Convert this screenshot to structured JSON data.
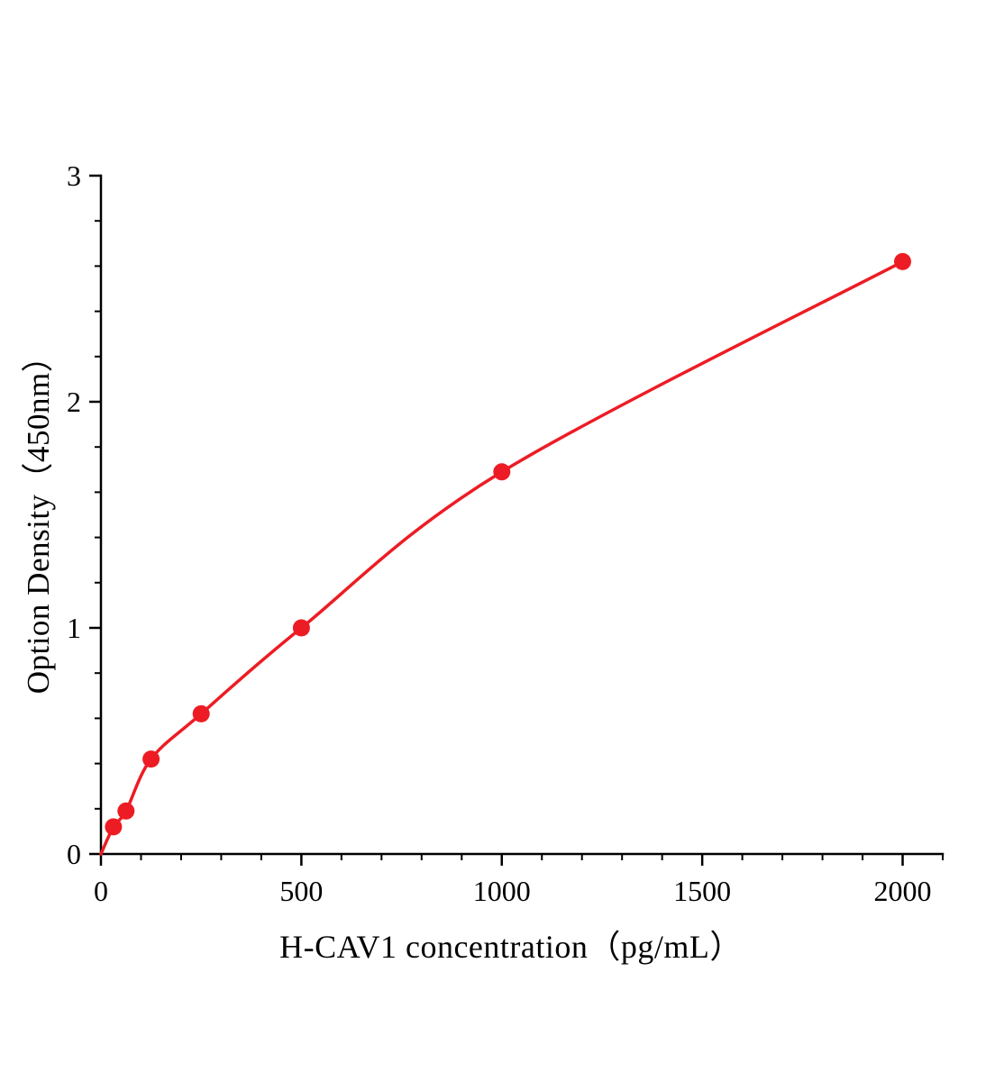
{
  "chart_data": {
    "type": "scatter",
    "title": "",
    "xlabel": "H-CAV1 concentration（pg/mL）",
    "ylabel": "Option Density（450nm）",
    "xlim": [
      0,
      2100
    ],
    "ylim": [
      0,
      3
    ],
    "xticks": [
      0,
      500,
      1000,
      1500,
      2000
    ],
    "yticks": [
      0,
      1,
      2,
      3
    ],
    "x_minor_step": 100,
    "y_minor_step": 0.2,
    "grid": false,
    "legend": "none",
    "axis_color": "#000000",
    "series": [
      {
        "name": "H-CAV1 standard curve",
        "color": "#ed1c24",
        "marker": "circle",
        "x": [
          31.25,
          62.5,
          125,
          250,
          500,
          1000,
          2000
        ],
        "y": [
          0.12,
          0.19,
          0.42,
          0.62,
          1.0,
          1.69,
          2.62
        ]
      }
    ],
    "curve_start": {
      "x": 0,
      "y": 0.0
    }
  },
  "colors": {
    "accent": "#ed1c24",
    "axis": "#000000",
    "background": "#ffffff"
  }
}
